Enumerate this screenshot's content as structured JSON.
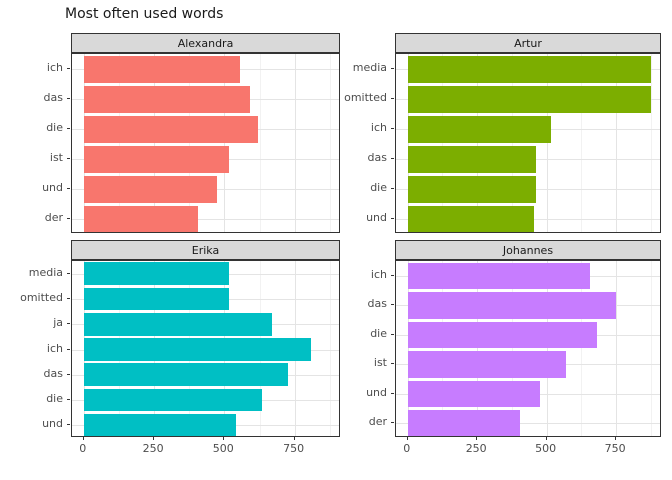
{
  "title": "Most often used words",
  "chart_data": {
    "type": "bar",
    "orientation": "horizontal",
    "title": "Most often used words",
    "xlabel": "",
    "ylabel": "",
    "grid": true,
    "legend": false,
    "x_ticks": [
      0,
      250,
      500,
      750
    ],
    "xlim": [
      0,
      915
    ],
    "facets": [
      {
        "name": "Alexandra",
        "color": "#F8766D",
        "categories": [
          "ich",
          "das",
          "die",
          "ist",
          "und",
          "der"
        ],
        "values": [
          555,
          590,
          620,
          515,
          475,
          405
        ]
      },
      {
        "name": "Artur",
        "color": "#7CAE00",
        "categories": [
          "media",
          "omitted",
          "ich",
          "das",
          "die",
          "und"
        ],
        "values": [
          875,
          875,
          515,
          462,
          462,
          455
        ]
      },
      {
        "name": "Erika",
        "color": "#00BFC4",
        "categories": [
          "media",
          "omitted",
          "ja",
          "ich",
          "das",
          "die",
          "und"
        ],
        "values": [
          515,
          515,
          670,
          810,
          725,
          635,
          540
        ]
      },
      {
        "name": "Johannes",
        "color": "#C77CFF",
        "categories": [
          "ich",
          "das",
          "die",
          "ist",
          "und",
          "der"
        ],
        "values": [
          655,
          750,
          680,
          570,
          475,
          405
        ]
      }
    ]
  },
  "colors": {
    "strip_fill": "#d9d9d9",
    "panel_border": "#333333",
    "grid_major": "#e4e4e4",
    "grid_minor": "#f2f2f2",
    "axis_text": "#4d4d4d"
  }
}
